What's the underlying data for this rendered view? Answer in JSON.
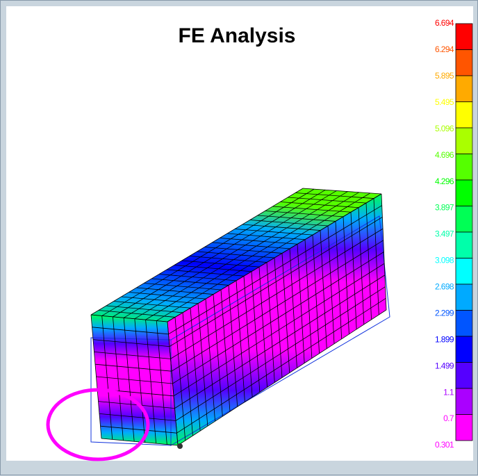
{
  "header": {
    "title": "FE Analysis"
  },
  "legend": {
    "labels": [
      "6.694",
      "6.294",
      "5.895",
      "5.495",
      "5.096",
      "4.696",
      "4.296",
      "3.897",
      "3.497",
      "3.098",
      "2.698",
      "2.299",
      "1.899",
      "1.499",
      "1.1",
      "0.7",
      "0.301"
    ],
    "colors": [
      "#ff0000",
      "#ff5500",
      "#ffaa00",
      "#ffff00",
      "#aaff00",
      "#55ff00",
      "#00ff00",
      "#00ff55",
      "#00ffaa",
      "#00ffff",
      "#00aaff",
      "#0055ff",
      "#0000ff",
      "#5500ff",
      "#aa00ff",
      "#ff00ff"
    ]
  }
}
